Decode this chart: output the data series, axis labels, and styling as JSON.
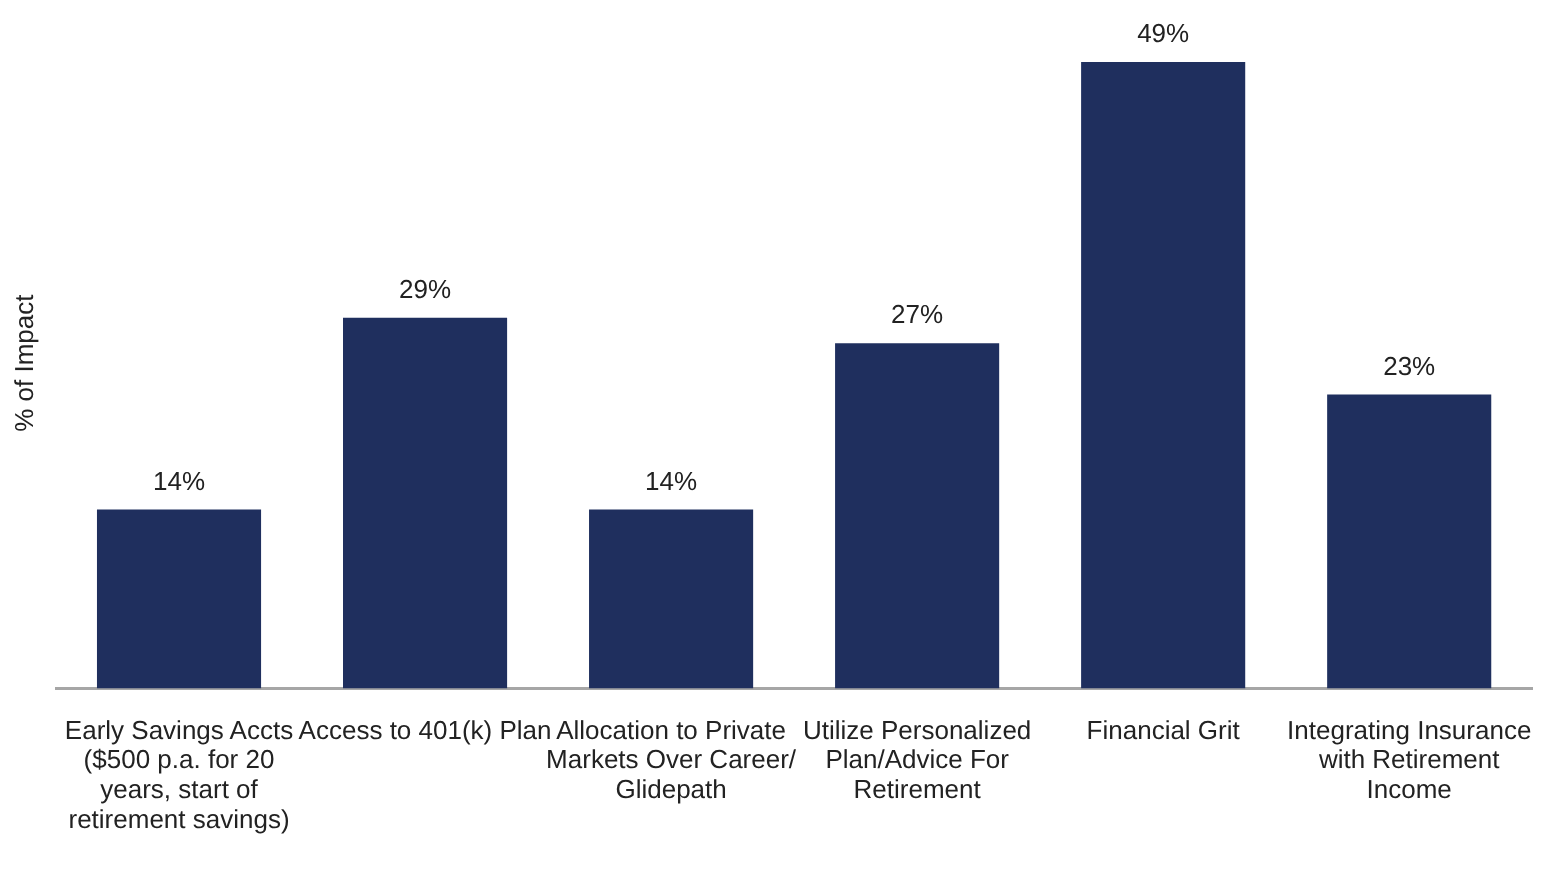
{
  "chart_data": {
    "type": "bar",
    "ylabel": "% of Impact",
    "categories": [
      "Early Savings Accts ($500 p.a. for 20 years, start of retirement savings)",
      "Access to 401(k) Plan",
      "Allocation to Private Markets Over Career/ Glidepath",
      "Utilize Personalized Plan/Advice For Retirement",
      "Financial Grit",
      "Integrating Insurance with Retirement Income"
    ],
    "values": [
      14,
      29,
      14,
      27,
      49,
      23
    ],
    "value_labels": [
      "14%",
      "29%",
      "14%",
      "27%",
      "49%",
      "23%"
    ],
    "color": "#1f2f5e"
  }
}
